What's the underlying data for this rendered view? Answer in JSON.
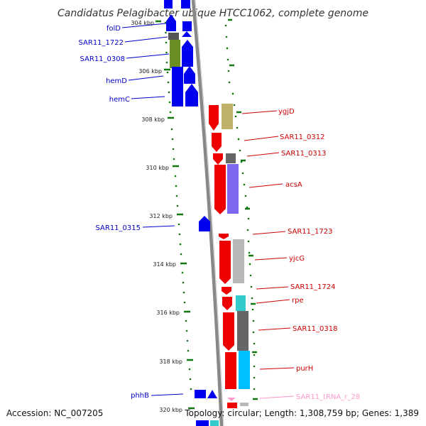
{
  "title": "Candidatus Pelagibacter ubique HTCC1062, complete genome",
  "footer": {
    "accession": "Accession: NC_007205",
    "topology": "Topology: circular; Length: 1,308,759 bp; Genes: 1,389"
  },
  "scale_labels": [
    "304 kbp",
    "306 kbp",
    "308 kbp",
    "310 kbp",
    "312 kbp",
    "314 kbp",
    "316 kbp",
    "318 kbp",
    "320 kbp"
  ],
  "colors": {
    "forward_strand": "#0000ee",
    "reverse_strand": "#ee0000",
    "rna": "#ff99cc",
    "backbone": "#888888",
    "tick": "#117711",
    "cog_olive": "#6b8e23",
    "cog_khaki": "#bfb06a",
    "cog_purple": "#7b68ee",
    "cog_gray": "#9a9a9a",
    "cog_dark_gray": "#666666",
    "cog_cyan": "#33cccc",
    "cog_sky": "#00bfff"
  },
  "genes_left": [
    {
      "label": "folD",
      "color": "#0000cc"
    },
    {
      "label": "SAR11_1722",
      "color": "#0000cc"
    },
    {
      "label": "SAR11_0308",
      "color": "#0000cc"
    },
    {
      "label": "hemD",
      "color": "#0000cc"
    },
    {
      "label": "hemC",
      "color": "#0000cc"
    },
    {
      "label": "SAR11_0315",
      "color": "#0000cc"
    },
    {
      "label": "phhB",
      "color": "#0000cc"
    }
  ],
  "genes_right": [
    {
      "label": "ygjD",
      "color": "#cc0000"
    },
    {
      "label": "SAR11_0312",
      "color": "#cc0000"
    },
    {
      "label": "SAR11_0313",
      "color": "#cc0000"
    },
    {
      "label": "acsA",
      "color": "#cc0000"
    },
    {
      "label": "SAR11_1723",
      "color": "#cc0000"
    },
    {
      "label": "yjcG",
      "color": "#cc0000"
    },
    {
      "label": "SAR11_1724",
      "color": "#cc0000"
    },
    {
      "label": "rpe",
      "color": "#cc0000"
    },
    {
      "label": "SAR11_0318",
      "color": "#cc0000"
    },
    {
      "label": "purH",
      "color": "#cc0000"
    },
    {
      "label": "SAR11_tRNA_r_28",
      "color": "#ff99cc"
    }
  ]
}
